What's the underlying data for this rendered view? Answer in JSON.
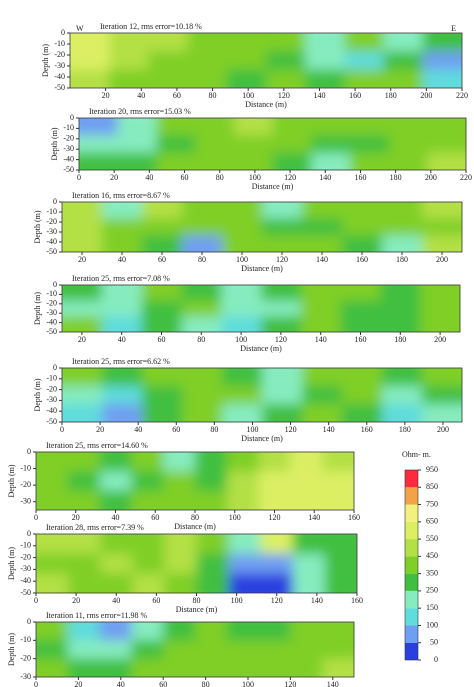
{
  "chart_data": [
    {
      "type": "heatmap",
      "title": "Iteration 12, rms error=10.18 %",
      "left_label": "W",
      "right_label": "E",
      "xlabel": "Distance (m)",
      "ylabel": "Depth (m)",
      "xlim": [
        0,
        220
      ],
      "xticks": [
        20,
        40,
        60,
        80,
        100,
        120,
        140,
        160,
        180,
        200,
        220
      ],
      "ylim": [
        -50,
        0
      ],
      "yticks": [
        0,
        -10,
        -20,
        -30,
        -40,
        -50
      ],
      "values": [
        [
          600,
          500,
          450,
          400,
          400,
          350,
          150,
          350,
          200,
          300
        ],
        [
          550,
          450,
          400,
          400,
          350,
          300,
          200,
          100,
          300,
          50
        ],
        [
          500,
          400,
          400,
          350,
          300,
          350,
          250,
          350,
          350,
          100
        ]
      ]
    },
    {
      "type": "heatmap",
      "title": "Iteration 20, rms error=15.03 %",
      "xlabel": "Distance (m)",
      "ylabel": "Depth (m)",
      "xlim": [
        0,
        220
      ],
      "xticks": [
        0,
        20,
        40,
        60,
        80,
        100,
        120,
        140,
        160,
        180,
        200,
        220
      ],
      "ylim": [
        -50,
        0
      ],
      "yticks": [
        0,
        -10,
        -20,
        -30,
        -40,
        -50
      ],
      "values": [
        [
          50,
          150,
          350,
          400,
          450,
          400,
          350,
          400,
          350,
          400
        ],
        [
          150,
          200,
          300,
          350,
          400,
          350,
          250,
          300,
          350,
          400
        ],
        [
          300,
          250,
          350,
          400,
          350,
          300,
          200,
          350,
          400,
          450
        ]
      ]
    },
    {
      "type": "heatmap",
      "title": "Iteration 16, rms error=8.67 %",
      "xlabel": "Distance (m)",
      "ylabel": "Depth (m)",
      "xlim": [
        10,
        210
      ],
      "xticks": [
        20,
        40,
        60,
        80,
        100,
        120,
        140,
        160,
        180,
        200
      ],
      "ylim": [
        -50,
        0
      ],
      "yticks": [
        0,
        -10,
        -20,
        -30,
        -40,
        -50
      ],
      "values": [
        [
          450,
          200,
          450,
          400,
          400,
          200,
          400,
          350,
          400,
          450
        ],
        [
          500,
          400,
          350,
          400,
          350,
          300,
          300,
          400,
          350,
          400
        ],
        [
          450,
          400,
          300,
          80,
          400,
          400,
          350,
          300,
          150,
          450
        ]
      ]
    },
    {
      "type": "heatmap",
      "title": "Iteration 25, rms error=7.08 %",
      "xlabel": "Distance (m)",
      "ylabel": "Depth (m)",
      "xlim": [
        10,
        210
      ],
      "xticks": [
        20,
        40,
        60,
        80,
        100,
        120,
        140,
        160,
        180,
        200
      ],
      "ylim": [
        -50,
        0
      ],
      "yticks": [
        0,
        -10,
        -20,
        -30,
        -40,
        -50
      ],
      "values": [
        [
          300,
          200,
          400,
          300,
          150,
          250,
          400,
          350,
          300,
          400
        ],
        [
          200,
          150,
          300,
          350,
          200,
          200,
          350,
          300,
          250,
          350
        ],
        [
          350,
          100,
          250,
          200,
          100,
          300,
          350,
          300,
          300,
          350
        ]
      ]
    },
    {
      "type": "heatmap",
      "title": "Iteration 25, rms error=6.62 %",
      "xlabel": "Distance (m)",
      "ylabel": "Depth (m)",
      "xlim": [
        0,
        210
      ],
      "xticks": [
        0,
        20,
        40,
        60,
        80,
        100,
        120,
        140,
        160,
        180,
        200
      ],
      "ylim": [
        -50,
        0
      ],
      "yticks": [
        0,
        -10,
        -20,
        -30,
        -40,
        -50
      ],
      "values": [
        [
          350,
          300,
          400,
          400,
          300,
          150,
          400,
          350,
          300,
          400
        ],
        [
          200,
          100,
          300,
          350,
          350,
          200,
          300,
          350,
          150,
          300
        ],
        [
          100,
          50,
          250,
          350,
          200,
          300,
          350,
          300,
          100,
          200
        ]
      ]
    },
    {
      "type": "heatmap",
      "title": "Iteration 25, rms error=14.60 %",
      "xlabel": "Distance (m)",
      "ylabel": "Depth (m)",
      "xlim": [
        0,
        160
      ],
      "xticks": [
        0,
        20,
        40,
        60,
        80,
        100,
        120,
        140,
        160
      ],
      "ylim": [
        -35,
        0
      ],
      "yticks": [
        0,
        -10,
        -20,
        -30
      ],
      "values": [
        [
          400,
          400,
          250,
          350,
          150,
          300,
          400,
          500,
          550,
          500
        ],
        [
          350,
          300,
          200,
          300,
          350,
          250,
          450,
          550,
          600,
          600
        ],
        [
          400,
          400,
          300,
          400,
          400,
          350,
          500,
          550,
          600,
          600
        ]
      ]
    },
    {
      "type": "heatmap",
      "title": "Iteration 28, rms error=7.39 %",
      "xlabel": "Distance (m)",
      "ylabel": "Depth (m)",
      "xlim": [
        0,
        160
      ],
      "xticks": [
        0,
        20,
        40,
        60,
        80,
        100,
        120,
        140,
        160
      ],
      "ylim": [
        -50,
        0
      ],
      "yticks": [
        0,
        -10,
        -20,
        -30,
        -40,
        -50
      ],
      "values": [
        [
          450,
          450,
          400,
          400,
          500,
          350,
          200,
          600,
          250,
          300
        ],
        [
          400,
          400,
          450,
          400,
          450,
          300,
          50,
          50,
          200,
          300
        ],
        [
          450,
          400,
          400,
          450,
          400,
          300,
          30,
          40,
          200,
          300
        ]
      ]
    },
    {
      "type": "heatmap",
      "title": "Iteration 11, rms error=11.98 %",
      "xlabel": "Distance (m)",
      "ylabel": "Depth (m)",
      "xlim": [
        0,
        150
      ],
      "xticks": [
        0,
        20,
        40,
        60,
        80,
        100,
        120,
        140
      ],
      "ylim": [
        -30,
        0
      ],
      "yticks": [
        0,
        -10,
        -20,
        -30
      ],
      "values": [
        [
          350,
          100,
          50,
          200,
          300,
          350,
          300,
          300,
          350,
          400
        ],
        [
          300,
          200,
          150,
          300,
          350,
          350,
          400,
          350,
          400,
          400
        ],
        [
          350,
          300,
          300,
          350,
          350,
          400,
          350,
          400,
          400,
          450
        ]
      ]
    }
  ],
  "colorbar": {
    "title": "Ohm- m.",
    "ticks": [
      0,
      50,
      100,
      150,
      250,
      350,
      450,
      550,
      650,
      750,
      850,
      950
    ],
    "colors": [
      "#2a3fe0",
      "#6f9ff2",
      "#5fdcdc",
      "#86ecc0",
      "#3fbf3f",
      "#7fcf27",
      "#b3e045",
      "#dcef63",
      "#f2f07e",
      "#f3a347",
      "#ff2a3c"
    ]
  }
}
